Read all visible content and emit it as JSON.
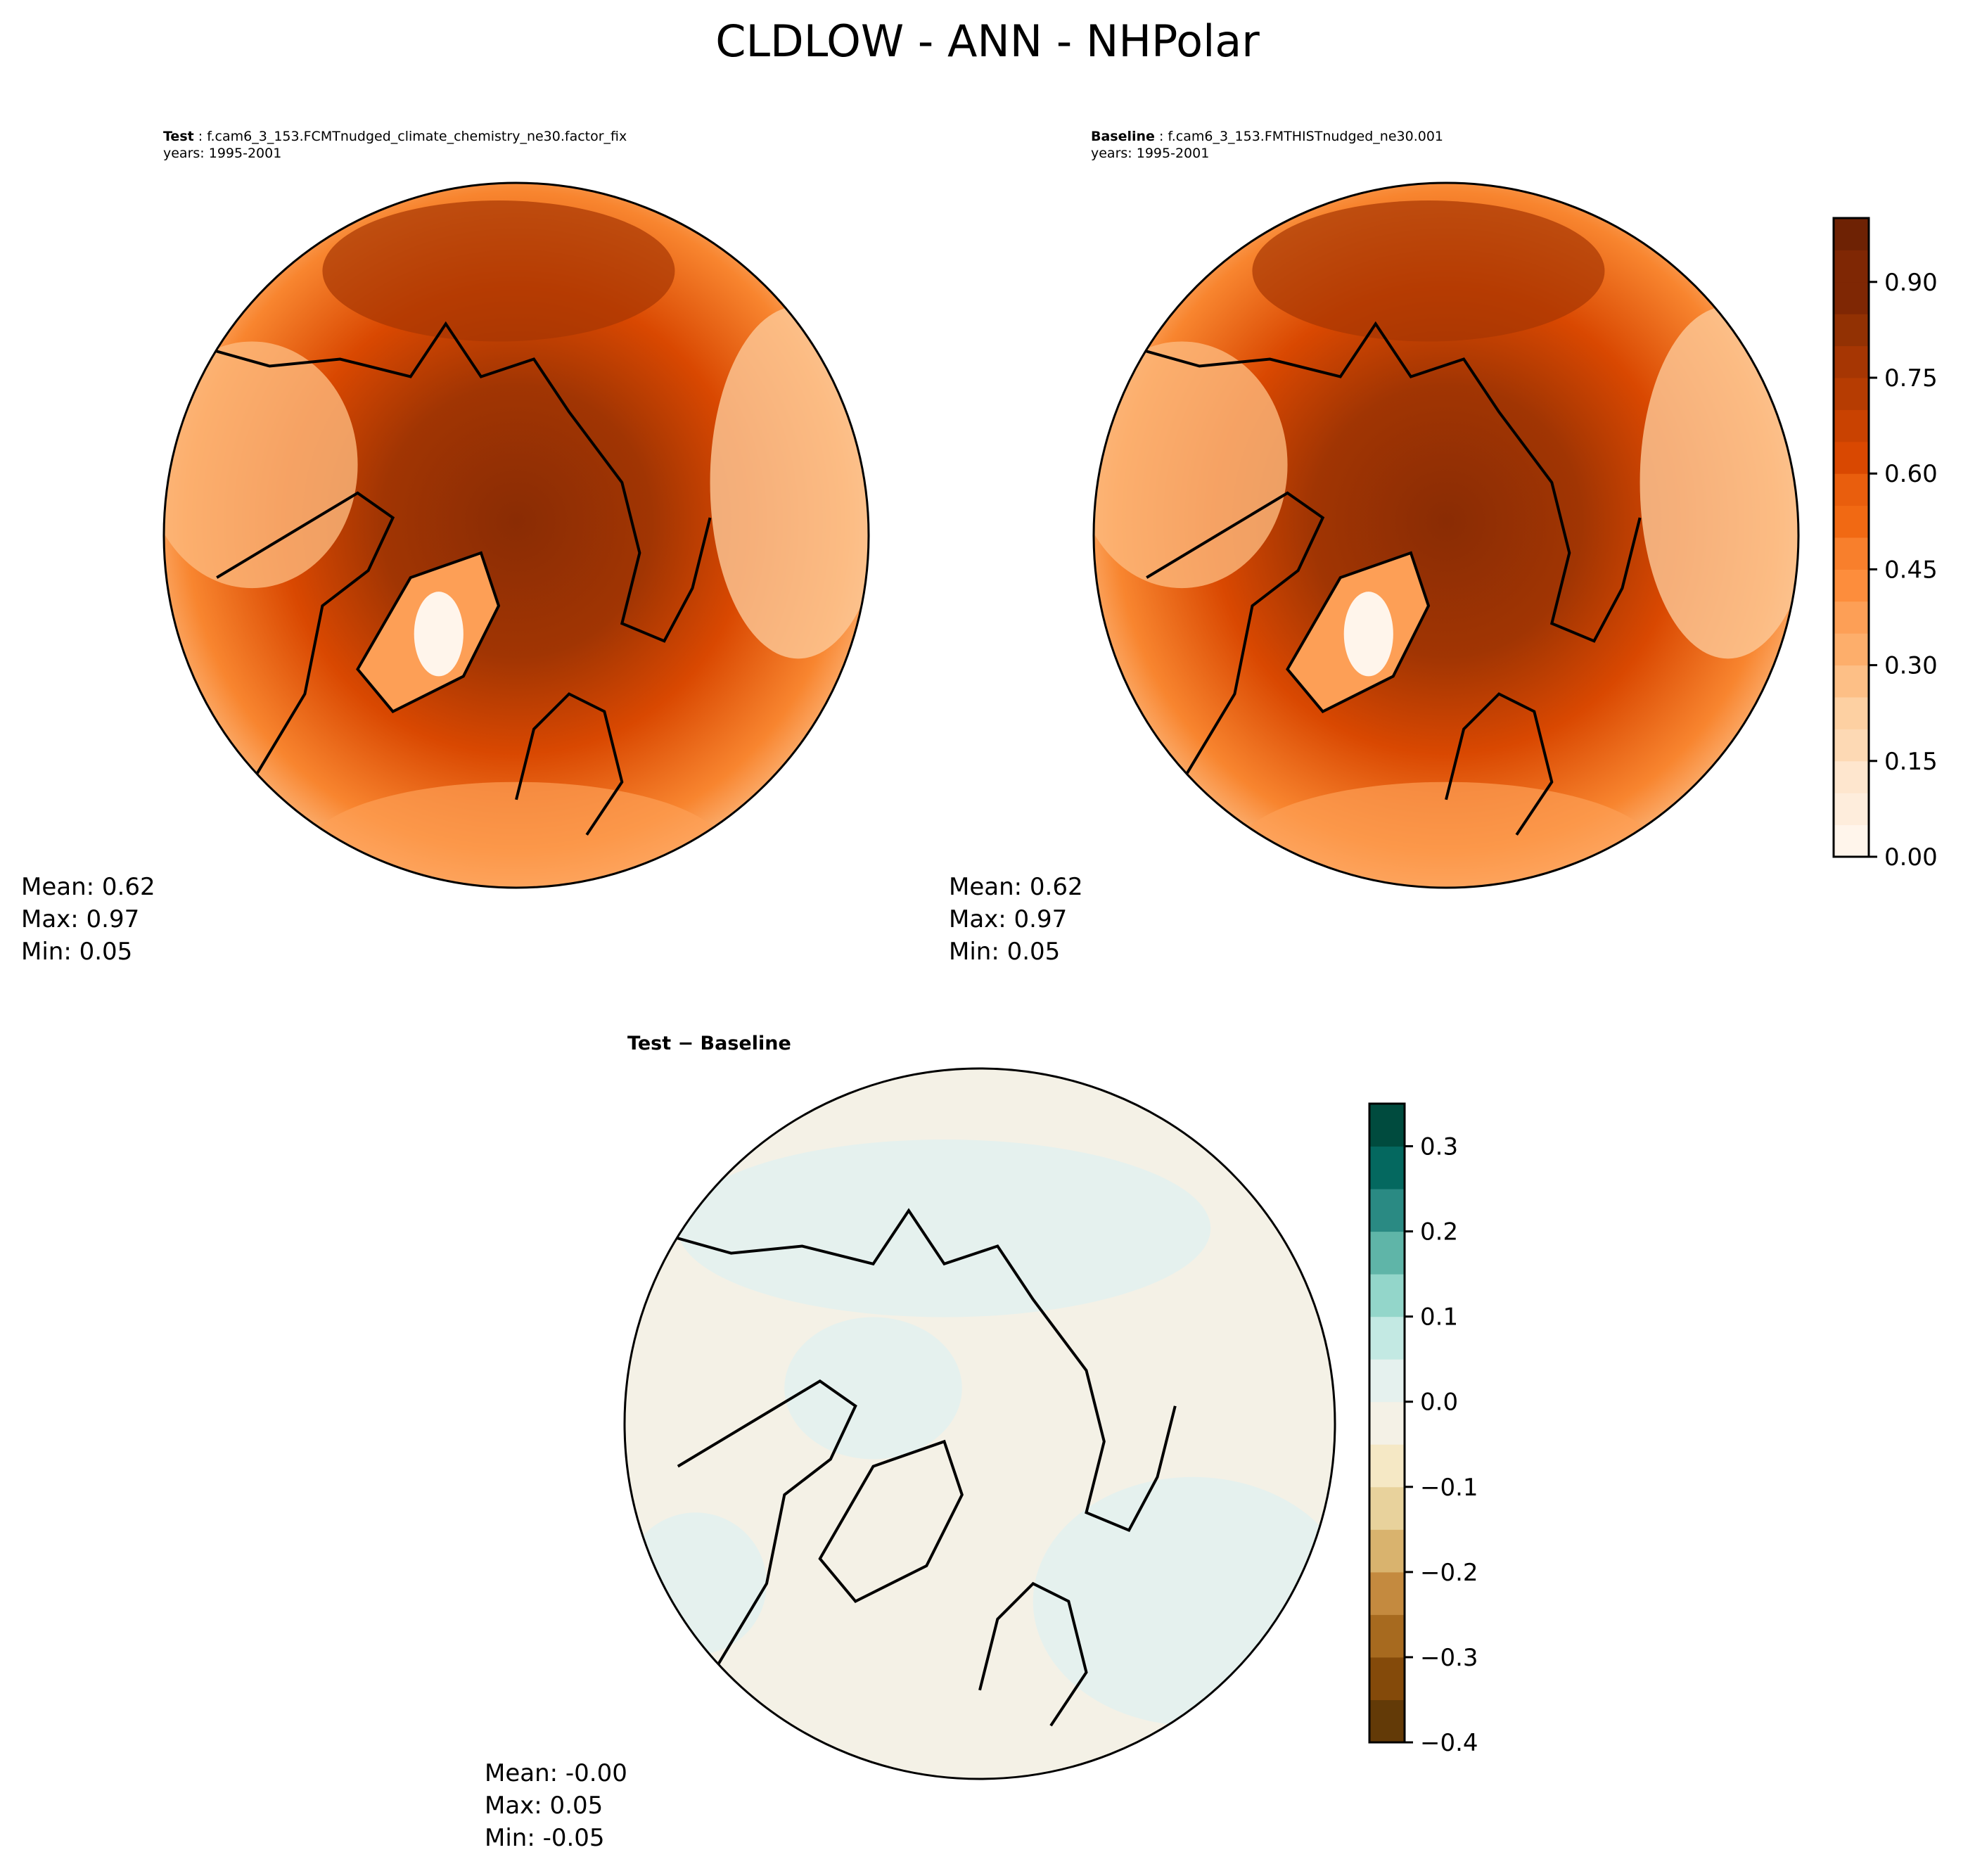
{
  "title": "CLDLOW - ANN - NHPolar",
  "panels": [
    {
      "label": "Test",
      "case": "f.cam6_3_153.FCMTnudged_climate_chemistry_ne30.factor_fix",
      "years": "years: 1995-2001",
      "stats": {
        "mean": "Mean:  0.62",
        "max": "Max:  0.97",
        "min": "Min:  0.05"
      }
    },
    {
      "label": "Baseline",
      "case": "f.cam6_3_153.FMTHISTnudged_ne30.001",
      "years": "years: 1995-2001",
      "stats": {
        "mean": "Mean:  0.62",
        "max": "Max:  0.97",
        "min": "Min:  0.05"
      }
    },
    {
      "label": "Test − Baseline",
      "stats": {
        "mean": "Mean: -0.00",
        "max": "Max:  0.05",
        "min": "Min: -0.05"
      }
    }
  ],
  "chart_data": [
    {
      "type": "heatmap",
      "title": "Test",
      "projection": "north-polar-stereographic",
      "colormap": "Oranges",
      "range": [
        0,
        1.0
      ],
      "level_step": 0.05,
      "colorbar_ticks": [
        "0.00",
        "0.15",
        "0.30",
        "0.45",
        "0.60",
        "0.75",
        "0.90"
      ],
      "mean": 0.62,
      "max": 0.97,
      "min": 0.05
    },
    {
      "type": "heatmap",
      "title": "Baseline",
      "projection": "north-polar-stereographic",
      "colormap": "Oranges",
      "range": [
        0,
        1.0
      ],
      "level_step": 0.05,
      "colorbar_ticks": [
        "0.00",
        "0.15",
        "0.30",
        "0.45",
        "0.60",
        "0.75",
        "0.90"
      ],
      "mean": 0.62,
      "max": 0.97,
      "min": 0.05
    },
    {
      "type": "heatmap",
      "title": "Test − Baseline",
      "projection": "north-polar-stereographic",
      "colormap": "BrBG",
      "range": [
        -0.4,
        0.35
      ],
      "level_step": 0.05,
      "colorbar_ticks": [
        "−0.4",
        "−0.3",
        "−0.2",
        "−0.1",
        "0.0",
        "0.1",
        "0.2",
        "0.3"
      ],
      "mean": -0.0,
      "max": 0.05,
      "min": -0.05
    }
  ],
  "colors": {
    "oranges": [
      "#fff5eb",
      "#feeddc",
      "#fee6ce",
      "#fdd9b4",
      "#fdd0a2",
      "#fdbf86",
      "#fdae6b",
      "#fd9f56",
      "#fd8d3c",
      "#f87f2c",
      "#f16913",
      "#e95e0d",
      "#d94801",
      "#c94201",
      "#b63c02",
      "#a63603",
      "#923103",
      "#7f2704",
      "#7f2704",
      "#6e2204"
    ],
    "brbg": [
      "#633a07",
      "#844a0a",
      "#a76a1f",
      "#c48a3f",
      "#d9b36e",
      "#e8d29c",
      "#f5e8c5",
      "#f4f1e6",
      "#e5f1ee",
      "#c3e9e3",
      "#93d6ca",
      "#5fb5a8",
      "#2a8a83",
      "#04685f",
      "#004b3e"
    ]
  }
}
